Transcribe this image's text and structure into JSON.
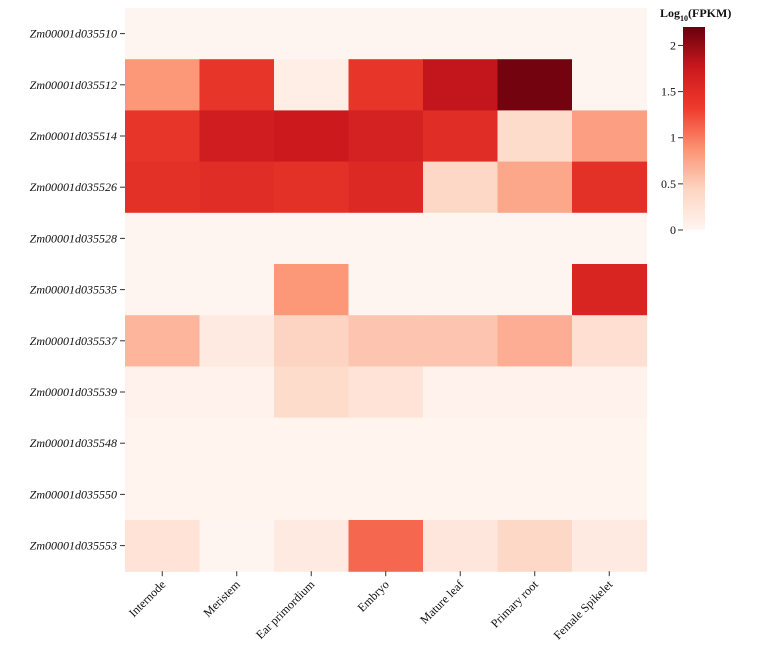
{
  "chart_data": {
    "type": "heatmap",
    "title": "",
    "rows": [
      "Zm00001d035510",
      "Zm00001d035512",
      "Zm00001d035514",
      "Zm00001d035526",
      "Zm00001d035528",
      "Zm00001d035535",
      "Zm00001d035537",
      "Zm00001d035539",
      "Zm00001d035548",
      "Zm00001d035550",
      "Zm00001d035553"
    ],
    "columns": [
      "Internode",
      "Meristem",
      "Ear primordium",
      "Embryo",
      "Mature leaf",
      "Primary root",
      "Female Spikelet"
    ],
    "values": [
      [
        0.0,
        0.0,
        0.0,
        0.0,
        0.0,
        0.0,
        0.0
      ],
      [
        0.85,
        1.4,
        0.1,
        1.4,
        1.8,
        2.15,
        0.0
      ],
      [
        1.4,
        1.7,
        1.75,
        1.65,
        1.5,
        0.35,
        0.8
      ],
      [
        1.45,
        1.5,
        1.45,
        1.55,
        0.4,
        0.75,
        1.45
      ],
      [
        0.0,
        0.0,
        0.0,
        0.0,
        0.0,
        0.0,
        0.0
      ],
      [
        0.0,
        0.0,
        0.85,
        0.0,
        0.0,
        0.0,
        1.6
      ],
      [
        0.65,
        0.15,
        0.45,
        0.55,
        0.55,
        0.7,
        0.3
      ],
      [
        0.05,
        0.05,
        0.35,
        0.25,
        0.05,
        0.05,
        0.05
      ],
      [
        0.02,
        0.02,
        0.02,
        0.02,
        0.02,
        0.02,
        0.02
      ],
      [
        0.02,
        0.02,
        0.02,
        0.02,
        0.02,
        0.02,
        0.02
      ],
      [
        0.25,
        0.0,
        0.15,
        1.1,
        0.2,
        0.4,
        0.15
      ]
    ],
    "colorbar": {
      "title": "Log₁₀(FPKM)",
      "title_base": "Log",
      "title_sub": "10",
      "title_rest": "(FPKM)",
      "min": 0,
      "max": 2.2,
      "ticks": [
        0,
        0.5,
        1,
        1.5,
        2
      ],
      "tick_labels": [
        "0",
        "0.5",
        "1",
        "1.5",
        "2"
      ]
    },
    "colors": [
      "#fff5f0",
      "#fdd5c3",
      "#fc9272",
      "#ef3b2c",
      "#cb181d",
      "#67000d"
    ]
  }
}
